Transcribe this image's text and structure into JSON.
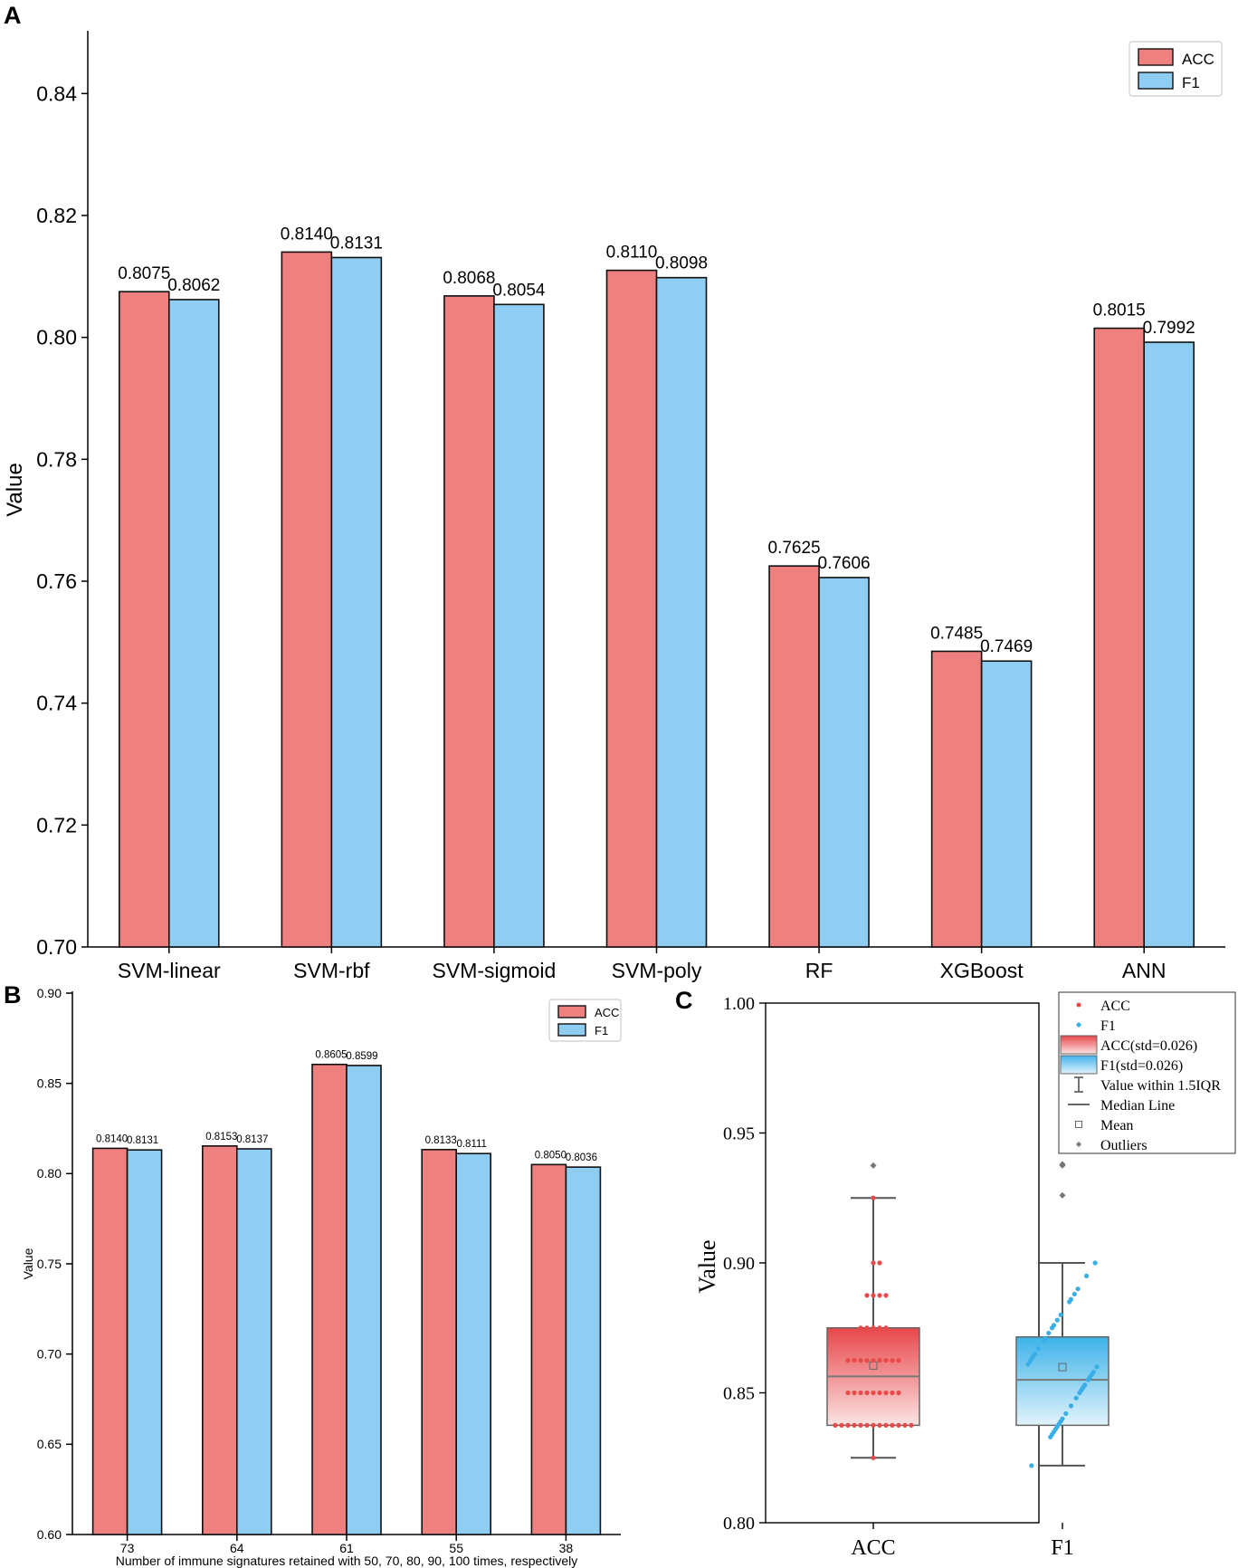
{
  "colors": {
    "acc": "#ef8080",
    "f1": "#8fcdf2",
    "acc_point": "#e84a4a",
    "f1_point": "#3aaee6",
    "stroke": "#1a1a1a",
    "whisker": "#555555"
  },
  "chart_data": [
    {
      "id": "A",
      "panel_label": "A",
      "type": "bar",
      "ylabel": "Value",
      "xlabel": "",
      "ylim": [
        0.7,
        0.85
      ],
      "yticks": [
        "0.70",
        "0.72",
        "0.74",
        "0.76",
        "0.78",
        "0.80",
        "0.82",
        "0.84"
      ],
      "categories": [
        "SVM-linear",
        "SVM-rbf",
        "SVM-sigmoid",
        "SVM-poly",
        "RF",
        "XGBoost",
        "ANN"
      ],
      "series": [
        {
          "name": "ACC",
          "values": [
            0.8075,
            0.814,
            0.8068,
            0.811,
            0.7625,
            0.7485,
            0.8015
          ],
          "labels": [
            "0.8075",
            "0.8140",
            "0.8068",
            "0.8110",
            "0.7625",
            "0.7485",
            "0.8015"
          ]
        },
        {
          "name": "F1",
          "values": [
            0.8062,
            0.8131,
            0.8054,
            0.8098,
            0.7606,
            0.7469,
            0.7992
          ],
          "labels": [
            "0.8062",
            "0.8131",
            "0.8054",
            "0.8098",
            "0.7606",
            "0.7469",
            "0.7992"
          ]
        }
      ],
      "legend": [
        "ACC",
        "F1"
      ],
      "legend_position": "top-right"
    },
    {
      "id": "B",
      "panel_label": "B",
      "type": "bar",
      "ylabel": "Value",
      "xlabel": "Number of immune signatures retained with 50, 70, 80, 90, 100 times, respectively",
      "ylim": [
        0.6,
        0.9
      ],
      "yticks": [
        "0.60",
        "0.65",
        "0.70",
        "0.75",
        "0.80",
        "0.85",
        "0.90"
      ],
      "categories": [
        "73",
        "64",
        "61",
        "55",
        "38"
      ],
      "series": [
        {
          "name": "ACC",
          "values": [
            0.814,
            0.8153,
            0.8605,
            0.8133,
            0.805
          ],
          "labels": [
            "0.8140",
            "0.8153",
            "0.8605",
            "0.8133",
            "0.8050"
          ]
        },
        {
          "name": "F1",
          "values": [
            0.8131,
            0.8137,
            0.8599,
            0.8111,
            0.8036
          ],
          "labels": [
            "0.8131",
            "0.8137",
            "0.8599",
            "0.8111",
            "0.8036"
          ]
        }
      ],
      "legend": [
        "ACC",
        "F1"
      ],
      "legend_position": "top-right"
    },
    {
      "id": "C",
      "panel_label": "C",
      "type": "box",
      "ylabel": "Value",
      "ylim": [
        0.8,
        1.0
      ],
      "yticks": [
        "0.80",
        "0.85",
        "0.90",
        "0.95",
        "1.00"
      ],
      "categories": [
        "ACC",
        "F1"
      ],
      "boxes": [
        {
          "name": "ACC",
          "q1": 0.8375,
          "median": 0.8563,
          "q3": 0.875,
          "mean": 0.8605,
          "whisker_low": 0.825,
          "whisker_high": 0.925,
          "outliers": [
            0.9375
          ],
          "points": [
            0.825,
            0.8375,
            0.8375,
            0.8375,
            0.8375,
            0.8375,
            0.8375,
            0.8375,
            0.8375,
            0.8375,
            0.8375,
            0.8375,
            0.8375,
            0.8375,
            0.85,
            0.85,
            0.85,
            0.85,
            0.85,
            0.85,
            0.85,
            0.85,
            0.85,
            0.8625,
            0.8625,
            0.8625,
            0.8625,
            0.8625,
            0.8625,
            0.8625,
            0.8625,
            0.8625,
            0.875,
            0.875,
            0.875,
            0.875,
            0.875,
            0.8875,
            0.8875,
            0.8875,
            0.8875,
            0.9,
            0.9,
            0.925
          ]
        },
        {
          "name": "F1",
          "q1": 0.8375,
          "median": 0.855,
          "q3": 0.8715,
          "mean": 0.8599,
          "whisker_low": 0.822,
          "whisker_high": 0.9,
          "outliers": [
            0.926,
            0.9375,
            0.938
          ],
          "points": [
            0.822,
            0.833,
            0.834,
            0.835,
            0.836,
            0.837,
            0.838,
            0.838,
            0.839,
            0.84,
            0.842,
            0.845,
            0.848,
            0.85,
            0.851,
            0.852,
            0.853,
            0.855,
            0.856,
            0.857,
            0.858,
            0.86,
            0.861,
            0.862,
            0.863,
            0.864,
            0.865,
            0.867,
            0.87,
            0.871,
            0.873,
            0.875,
            0.876,
            0.878,
            0.88,
            0.885,
            0.886,
            0.888,
            0.89,
            0.895,
            0.9
          ]
        }
      ],
      "legend": [
        "ACC",
        "F1",
        "ACC(std=0.026)",
        "F1(std=0.026)",
        "Value within 1.5IQR",
        "Median Line",
        "Mean",
        "Outliers"
      ],
      "legend_position": "top-right"
    }
  ]
}
